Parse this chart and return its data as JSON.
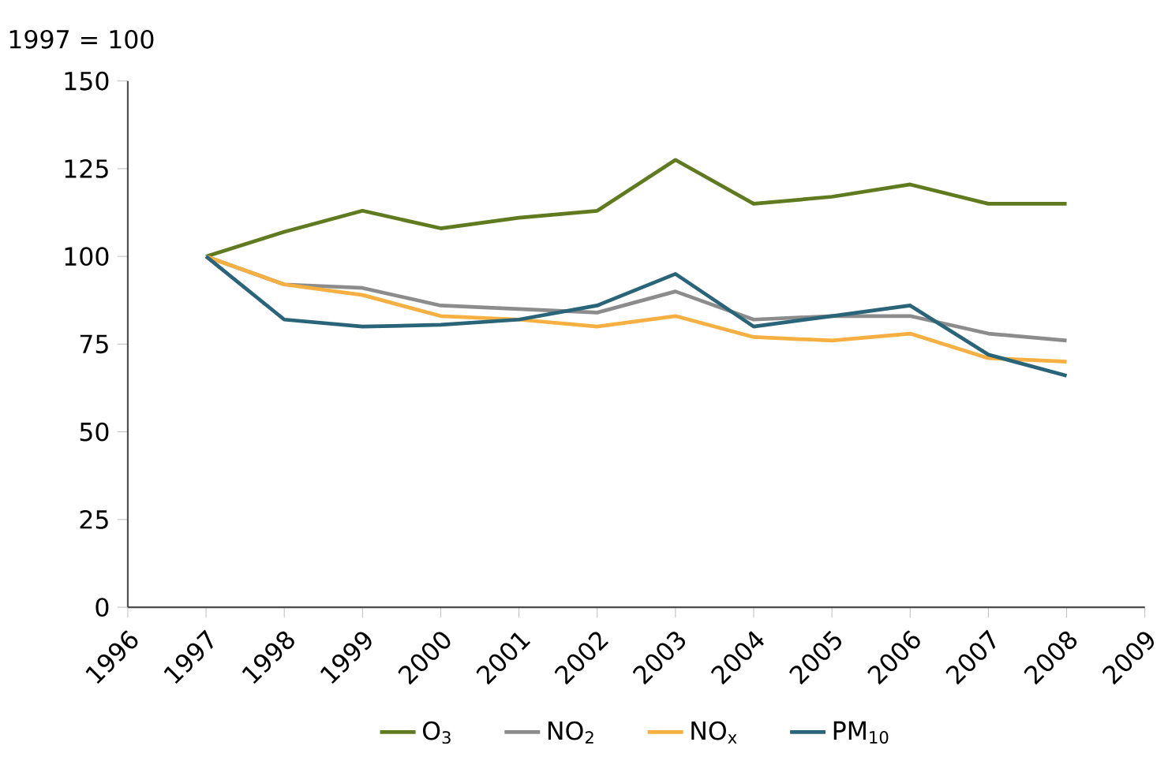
{
  "chart_data": {
    "type": "line",
    "ylabel": "1997 = 100",
    "x": [
      1997,
      1998,
      1999,
      2000,
      2001,
      2002,
      2003,
      2004,
      2005,
      2006,
      2007,
      2008
    ],
    "xlim": [
      1996,
      2009
    ],
    "xticks": [
      1996,
      1997,
      1998,
      1999,
      2000,
      2001,
      2002,
      2003,
      2004,
      2005,
      2006,
      2007,
      2008,
      2009
    ],
    "ylim": [
      0,
      150
    ],
    "yticks": [
      0,
      25,
      50,
      75,
      100,
      125,
      150
    ],
    "legend": "bottom",
    "series": [
      {
        "name": "O$_{3}$",
        "color": "#5f7a1f",
        "values": [
          100,
          107,
          113,
          108,
          111,
          113,
          127.5,
          115,
          117,
          120.5,
          115,
          115
        ]
      },
      {
        "name": "NO$_{2}$",
        "color": "#8c8c8c",
        "values": [
          100,
          92,
          91,
          86,
          85,
          84,
          90,
          82,
          83,
          83,
          78,
          76
        ]
      },
      {
        "name": "NO$_{x}$",
        "color": "#f5b041",
        "values": [
          100,
          92,
          89,
          83,
          82,
          80,
          83,
          77,
          76,
          78,
          71,
          70
        ]
      },
      {
        "name": "PM$_{10}$",
        "color": "#2a6478",
        "values": [
          100,
          82,
          80,
          80.5,
          82,
          86,
          95,
          80,
          83,
          86,
          72,
          66
        ]
      }
    ]
  }
}
